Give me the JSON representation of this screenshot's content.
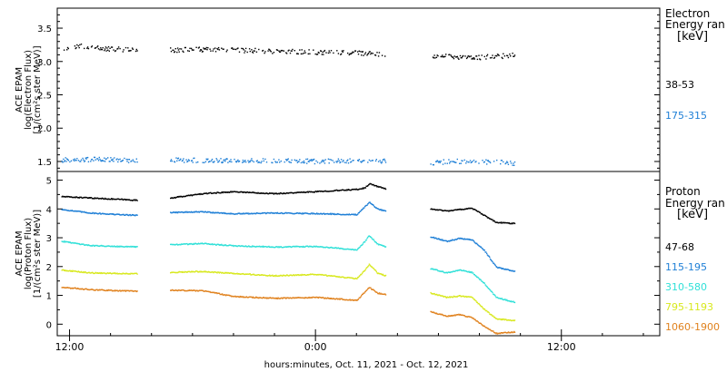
{
  "xlabel": "hours:minutes, Oct. 11, 2021 - Oct. 12, 2021",
  "x_ticks": [
    {
      "label": "12:00",
      "hour": 12
    },
    {
      "label": "0:00",
      "hour": 24
    },
    {
      "label": "12:00",
      "hour": 36
    }
  ],
  "chart_data": [
    {
      "type": "scatter",
      "panel": "electron",
      "ylabel": [
        "ACE EPAM",
        "log(Electron Flux)",
        "[1/(cm²s ster MeV)]"
      ],
      "legend_title": [
        "Electron",
        "Energy ran",
        "[keV]"
      ],
      "xlim": [
        11.4,
        40.8
      ],
      "ylim": [
        1.35,
        3.8
      ],
      "y_ticks": [
        1.5,
        2.0,
        2.5,
        3.0,
        3.5
      ],
      "y_tick_labels": [
        "1.5",
        "2.0",
        "2.5",
        "3.0",
        "3.5"
      ],
      "data_gaps_hours": [
        [
          15.3,
          16.9
        ],
        [
          27.4,
          29.6
        ],
        [
          33.7,
          40.8
        ]
      ],
      "series": [
        {
          "name": "38-53",
          "color": "#000000",
          "points": [
            [
              11.6,
              3.2
            ],
            [
              12.5,
              3.24
            ],
            [
              13.5,
              3.2
            ],
            [
              14.5,
              3.19
            ],
            [
              15.3,
              3.18
            ],
            [
              16.9,
              3.18
            ],
            [
              18.5,
              3.19
            ],
            [
              20.0,
              3.18
            ],
            [
              22.0,
              3.16
            ],
            [
              24.0,
              3.15
            ],
            [
              26.0,
              3.14
            ],
            [
              27.4,
              3.1
            ],
            [
              29.6,
              3.08
            ],
            [
              30.5,
              3.09
            ],
            [
              31.5,
              3.06
            ],
            [
              32.5,
              3.08
            ],
            [
              33.7,
              3.1
            ]
          ]
        },
        {
          "name": "175-315",
          "color": "#1e7fd6",
          "points": [
            [
              11.6,
              1.53
            ],
            [
              13.5,
              1.54
            ],
            [
              15.3,
              1.52
            ],
            [
              16.9,
              1.53
            ],
            [
              20.0,
              1.52
            ],
            [
              24.0,
              1.51
            ],
            [
              27.4,
              1.52
            ],
            [
              29.6,
              1.49
            ],
            [
              31.5,
              1.52
            ],
            [
              33.7,
              1.48
            ]
          ]
        }
      ]
    },
    {
      "type": "line",
      "panel": "proton",
      "ylabel": [
        "ACE EPAM",
        "log(Proton Flux)",
        "[1/(cm²s ster MeV)]"
      ],
      "legend_title": [
        "Proton",
        "Energy ran",
        "[keV]"
      ],
      "xlim": [
        11.4,
        40.8
      ],
      "ylim": [
        -0.4,
        5.3
      ],
      "y_ticks": [
        0,
        1,
        2,
        3,
        4,
        5
      ],
      "y_tick_labels": [
        "0",
        "1",
        "2",
        "3",
        "4",
        "5"
      ],
      "data_gaps_hours": [
        [
          15.3,
          16.9
        ],
        [
          27.4,
          29.6
        ],
        [
          33.7,
          40.8
        ]
      ],
      "series": [
        {
          "name": "47-68",
          "color": "#000000",
          "points": [
            [
              11.6,
              4.45
            ],
            [
              13.0,
              4.4
            ],
            [
              14.5,
              4.35
            ],
            [
              15.3,
              4.32
            ],
            [
              16.9,
              4.4
            ],
            [
              18.5,
              4.55
            ],
            [
              20.0,
              4.62
            ],
            [
              22.0,
              4.55
            ],
            [
              24.0,
              4.62
            ],
            [
              26.0,
              4.7
            ],
            [
              26.4,
              4.75
            ],
            [
              26.6,
              4.9
            ],
            [
              27.0,
              4.8
            ],
            [
              27.4,
              4.72
            ],
            [
              29.6,
              4.02
            ],
            [
              30.4,
              3.95
            ],
            [
              31.0,
              4.0
            ],
            [
              31.6,
              4.05
            ],
            [
              32.2,
              3.8
            ],
            [
              32.8,
              3.55
            ],
            [
              33.7,
              3.52
            ]
          ]
        },
        {
          "name": "115-195",
          "color": "#1e7fd6",
          "points": [
            [
              11.6,
              4.0
            ],
            [
              13.0,
              3.88
            ],
            [
              14.5,
              3.82
            ],
            [
              15.3,
              3.8
            ],
            [
              16.9,
              3.9
            ],
            [
              18.5,
              3.92
            ],
            [
              20.0,
              3.85
            ],
            [
              22.0,
              3.88
            ],
            [
              24.0,
              3.86
            ],
            [
              26.0,
              3.82
            ],
            [
              26.4,
              4.1
            ],
            [
              26.6,
              4.25
            ],
            [
              27.0,
              4.02
            ],
            [
              27.4,
              3.95
            ],
            [
              29.6,
              3.05
            ],
            [
              30.4,
              2.9
            ],
            [
              31.0,
              3.0
            ],
            [
              31.6,
              2.95
            ],
            [
              32.2,
              2.6
            ],
            [
              32.8,
              2.0
            ],
            [
              33.7,
              1.85
            ]
          ]
        },
        {
          "name": "310-580",
          "color": "#30e0d8",
          "points": [
            [
              11.6,
              2.9
            ],
            [
              13.0,
              2.75
            ],
            [
              14.5,
              2.72
            ],
            [
              15.3,
              2.7
            ],
            [
              16.9,
              2.78
            ],
            [
              18.5,
              2.82
            ],
            [
              20.0,
              2.74
            ],
            [
              22.0,
              2.7
            ],
            [
              24.0,
              2.72
            ],
            [
              26.0,
              2.6
            ],
            [
              26.4,
              2.9
            ],
            [
              26.6,
              3.1
            ],
            [
              27.0,
              2.8
            ],
            [
              27.4,
              2.7
            ],
            [
              29.6,
              1.95
            ],
            [
              30.4,
              1.8
            ],
            [
              31.0,
              1.9
            ],
            [
              31.6,
              1.82
            ],
            [
              32.2,
              1.45
            ],
            [
              32.8,
              0.95
            ],
            [
              33.7,
              0.78
            ]
          ]
        },
        {
          "name": "795-1193",
          "color": "#d8e81e",
          "points": [
            [
              11.6,
              1.9
            ],
            [
              13.0,
              1.8
            ],
            [
              14.5,
              1.78
            ],
            [
              15.3,
              1.77
            ],
            [
              16.9,
              1.82
            ],
            [
              18.5,
              1.85
            ],
            [
              20.0,
              1.78
            ],
            [
              22.0,
              1.7
            ],
            [
              24.0,
              1.75
            ],
            [
              26.0,
              1.6
            ],
            [
              26.4,
              1.9
            ],
            [
              26.6,
              2.1
            ],
            [
              27.0,
              1.8
            ],
            [
              27.4,
              1.7
            ],
            [
              29.6,
              1.1
            ],
            [
              30.4,
              0.95
            ],
            [
              31.0,
              1.0
            ],
            [
              31.6,
              0.95
            ],
            [
              32.2,
              0.55
            ],
            [
              32.8,
              0.2
            ],
            [
              33.7,
              0.15
            ]
          ]
        },
        {
          "name": "1060-1900",
          "color": "#e0821e",
          "points": [
            [
              11.6,
              1.3
            ],
            [
              13.0,
              1.22
            ],
            [
              14.5,
              1.18
            ],
            [
              15.3,
              1.17
            ],
            [
              16.9,
              1.2
            ],
            [
              18.5,
              1.18
            ],
            [
              20.0,
              0.98
            ],
            [
              22.0,
              0.92
            ],
            [
              24.0,
              0.95
            ],
            [
              26.0,
              0.85
            ],
            [
              26.4,
              1.15
            ],
            [
              26.6,
              1.3
            ],
            [
              27.0,
              1.1
            ],
            [
              27.4,
              1.05
            ],
            [
              29.6,
              0.45
            ],
            [
              30.4,
              0.3
            ],
            [
              31.0,
              0.35
            ],
            [
              31.6,
              0.25
            ],
            [
              32.2,
              -0.05
            ],
            [
              32.8,
              -0.3
            ],
            [
              33.7,
              -0.25
            ]
          ]
        }
      ]
    }
  ]
}
